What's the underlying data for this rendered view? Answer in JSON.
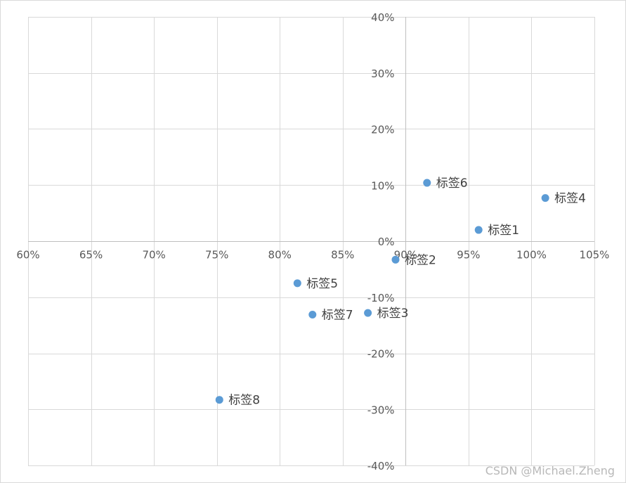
{
  "chart_data": {
    "type": "scatter",
    "title": "",
    "xlabel": "",
    "ylabel": "",
    "xlim": [
      0.6,
      1.05
    ],
    "ylim": [
      -0.4,
      0.4
    ],
    "x_ticks": [
      0.6,
      0.65,
      0.7,
      0.75,
      0.8,
      0.85,
      0.9,
      0.95,
      1.0,
      1.05
    ],
    "y_ticks": [
      0.4,
      0.3,
      0.2,
      0.1,
      0.0,
      -0.1,
      -0.2,
      -0.3,
      -0.4
    ],
    "x_tick_labels": [
      "60%",
      "65%",
      "70%",
      "75%",
      "80%",
      "85%",
      "90%",
      "95%",
      "100%",
      "105%"
    ],
    "y_tick_labels": [
      "40%",
      "30%",
      "20%",
      "10%",
      "0%",
      "-10%",
      "-20%",
      "-30%",
      "-40%"
    ],
    "axis_cross": {
      "x": 0.9,
      "y": 0.0
    },
    "grid": true,
    "marker_color": "#5b9bd5",
    "points": [
      {
        "label": "标签1",
        "x": 0.958,
        "y": 0.02
      },
      {
        "label": "标签2",
        "x": 0.892,
        "y": -0.033
      },
      {
        "label": "标签3",
        "x": 0.87,
        "y": -0.128
      },
      {
        "label": "标签4",
        "x": 1.011,
        "y": 0.077
      },
      {
        "label": "标签5",
        "x": 0.814,
        "y": -0.075
      },
      {
        "label": "标签6",
        "x": 0.917,
        "y": 0.104
      },
      {
        "label": "标签7",
        "x": 0.826,
        "y": -0.131
      },
      {
        "label": "标签8",
        "x": 0.752,
        "y": -0.283
      }
    ]
  },
  "watermark": "CSDN @Michael.Zheng"
}
